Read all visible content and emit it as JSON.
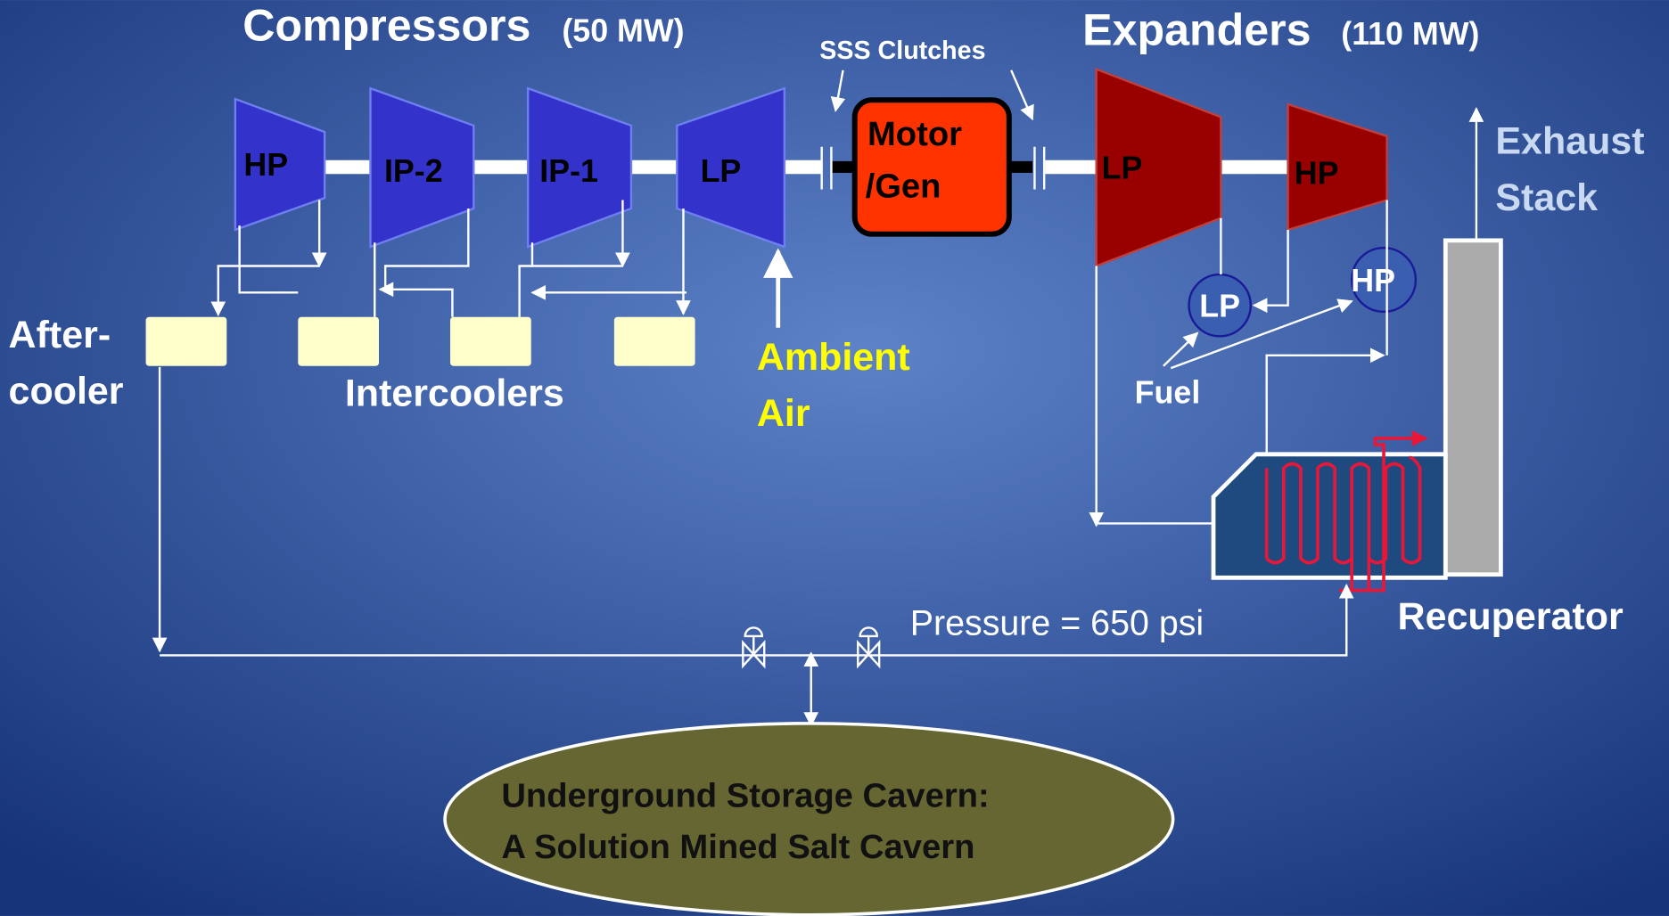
{
  "compressors": {
    "title": "Compressors",
    "rating": "(50 MW)",
    "stages": [
      "HP",
      "IP-2",
      "IP-1",
      "LP"
    ]
  },
  "expanders": {
    "title": "Expanders",
    "rating": "(110 MW)",
    "stages": [
      "LP",
      "HP"
    ]
  },
  "clutches": "SSS Clutches",
  "motor": [
    "Motor",
    "/Gen"
  ],
  "exhaust": [
    "Exhaust",
    "Stack"
  ],
  "combustors": [
    "LP",
    "HP"
  ],
  "fuel": "Fuel",
  "aftercooler": [
    "After-",
    "cooler"
  ],
  "intercoolers": "Intercoolers",
  "ambient": [
    "Ambient",
    "Air"
  ],
  "recuperator": "Recuperator",
  "pressure": "Pressure = 650 psi",
  "cavern": [
    "Underground Storage Cavern:",
    "A Solution Mined Salt Cavern"
  ]
}
